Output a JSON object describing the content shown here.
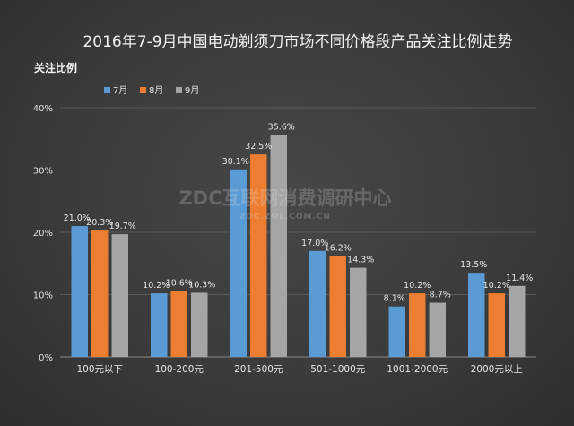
{
  "chart_data": {
    "type": "bar",
    "title": "2016年7-9月中国电动剃须刀市场不同价格段产品关注比例走势",
    "ylabel": "关注比例",
    "xlabel": "",
    "ylim": [
      0,
      40
    ],
    "yticks": [
      "0%",
      "10%",
      "20%",
      "30%",
      "40%"
    ],
    "grid": true,
    "legend_position": "top-left",
    "categories": [
      "100元以下",
      "100-200元",
      "201-500元",
      "501-1000元",
      "1001-2000元",
      "2000元以上"
    ],
    "series": [
      {
        "name": "7月",
        "color": "#5b9bd5",
        "values": [
          21.0,
          10.2,
          30.1,
          17.0,
          8.1,
          13.5
        ],
        "labels": [
          "21.0%",
          "10.2%",
          "30.1%",
          "17.0%",
          "8.1%",
          "13.5%"
        ]
      },
      {
        "name": "8月",
        "color": "#ed7d31",
        "values": [
          20.3,
          10.6,
          32.5,
          16.2,
          10.2,
          10.2
        ],
        "labels": [
          "20.3%",
          "10.6%",
          "32.5%",
          "16.2%",
          "10.2%",
          "10.2%"
        ]
      },
      {
        "name": "9月",
        "color": "#a5a5a5",
        "values": [
          19.7,
          10.3,
          35.6,
          14.3,
          8.7,
          11.4
        ],
        "labels": [
          "19.7%",
          "10.3%",
          "35.6%",
          "14.3%",
          "8.7%",
          "11.4%"
        ]
      }
    ]
  },
  "watermark": {
    "line1": "ZDC互联网消费调研中心",
    "line2": "ZDC.ZOL.COM.CN"
  }
}
